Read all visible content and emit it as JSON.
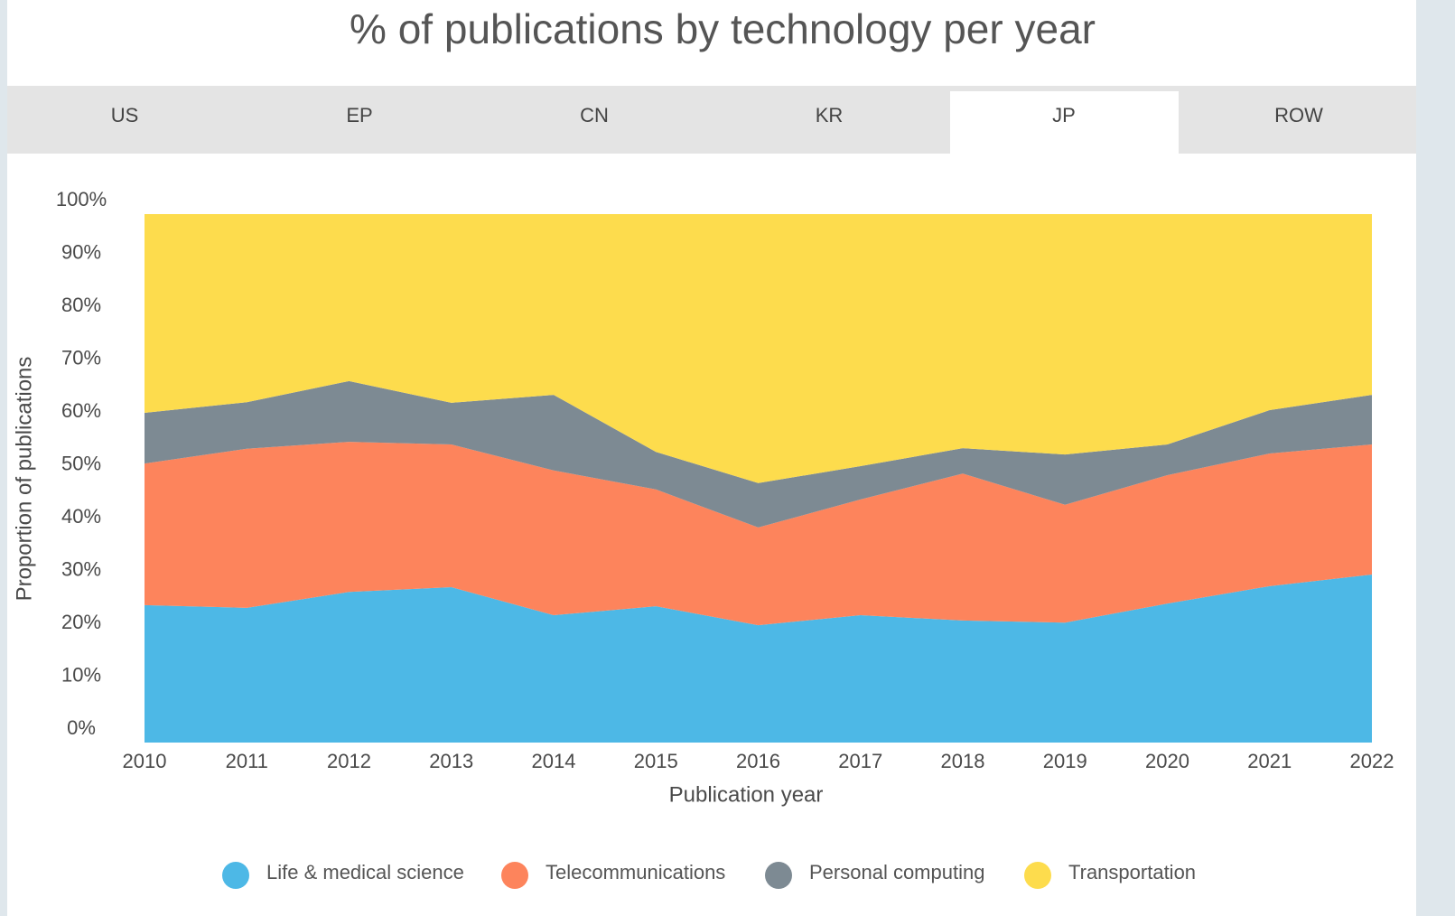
{
  "tabs": {
    "items": [
      "US",
      "EP",
      "CN",
      "KR",
      "JP",
      "ROW"
    ],
    "active": 4
  },
  "chart_data": {
    "type": "stacked_area",
    "title": "% of publications by technology per year",
    "x_label": "Publication year",
    "y_label": "Proportion of publications",
    "x": [
      2010,
      2011,
      2012,
      2013,
      2014,
      2015,
      2016,
      2017,
      2018,
      2019,
      2020,
      2021,
      2022
    ],
    "xlim": [
      2010,
      2022
    ],
    "xticks": [
      2010,
      2011,
      2012,
      2013,
      2014,
      2015,
      2016,
      2017,
      2018,
      2019,
      2020,
      2021,
      2022
    ],
    "ylim": [
      0,
      100
    ],
    "yticks": [
      {
        "value": 0,
        "label": "0%"
      },
      {
        "value": 10,
        "label": "10%"
      },
      {
        "value": 20,
        "label": "20%"
      },
      {
        "value": 30,
        "label": "30%"
      },
      {
        "value": 40,
        "label": "40%"
      },
      {
        "value": 50,
        "label": "50%"
      },
      {
        "value": 60,
        "label": "60%"
      },
      {
        "value": 70,
        "label": "70%"
      },
      {
        "value": 80,
        "label": "80%"
      },
      {
        "value": 90,
        "label": "90%"
      },
      {
        "value": 100,
        "label": "100%"
      }
    ],
    "grid": false,
    "legend": "bottom",
    "series": [
      {
        "name": "Life & medical science",
        "color": "#4db8e6",
        "values": [
          26.0,
          25.5,
          28.5,
          29.4,
          24.1,
          25.8,
          22.2,
          24.1,
          23.1,
          22.7,
          26.3,
          29.6,
          31.8
        ]
      },
      {
        "name": "Telecommunications",
        "color": "#fd845c",
        "values": [
          26.8,
          30.1,
          28.4,
          27.0,
          27.4,
          22.1,
          18.5,
          21.9,
          27.8,
          22.3,
          24.3,
          25.1,
          24.6
        ]
      },
      {
        "name": "Personal computing",
        "color": "#7d8a93",
        "values": [
          9.6,
          8.8,
          11.5,
          7.9,
          14.3,
          7.1,
          8.4,
          6.3,
          4.8,
          9.5,
          5.8,
          8.2,
          9.4
        ]
      },
      {
        "name": "Transportation",
        "color": "#fddc4d",
        "values": [
          37.6,
          35.6,
          31.6,
          35.7,
          34.2,
          45.0,
          50.9,
          47.7,
          44.3,
          45.5,
          43.6,
          37.1,
          34.2
        ]
      }
    ]
  }
}
